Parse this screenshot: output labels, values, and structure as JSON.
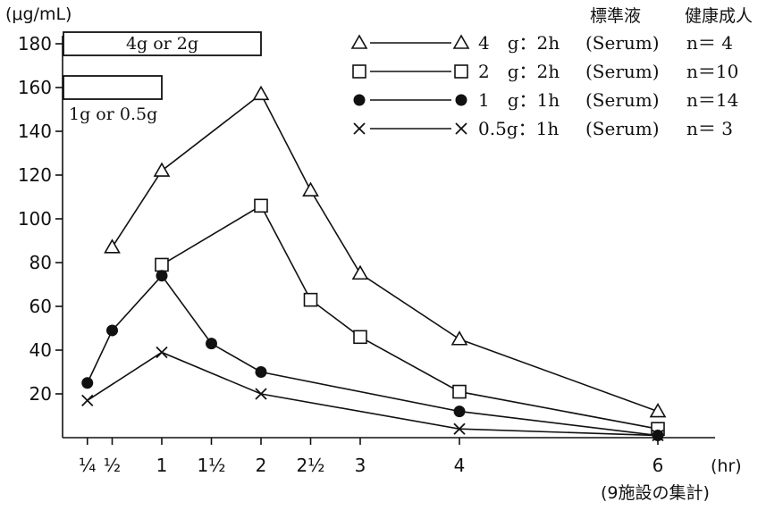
{
  "chart_data": {
    "type": "line",
    "y_unit": "(μg/mL)",
    "x_unit": "(hr)",
    "footnote": "(9施設の集計)",
    "header_col1": "標準液",
    "header_col2": "健康成人",
    "xlim": [
      0,
      6.5
    ],
    "ylim": [
      0,
      190
    ],
    "y_ticks": [
      {
        "v": 20,
        "label": "20"
      },
      {
        "v": 40,
        "label": "40"
      },
      {
        "v": 60,
        "label": "60"
      },
      {
        "v": 80,
        "label": "80"
      },
      {
        "v": 100,
        "label": "100"
      },
      {
        "v": 120,
        "label": "120"
      },
      {
        "v": 140,
        "label": "140"
      },
      {
        "v": 160,
        "label": "160"
      },
      {
        "v": 180,
        "label": "180"
      }
    ],
    "x_ticks": [
      {
        "v": 0.25,
        "label": "¼"
      },
      {
        "v": 0.5,
        "label": "½"
      },
      {
        "v": 1,
        "label": "1"
      },
      {
        "v": 1.5,
        "label": "1½"
      },
      {
        "v": 2,
        "label": "2"
      },
      {
        "v": 2.5,
        "label": "2½"
      },
      {
        "v": 3,
        "label": "3"
      },
      {
        "v": 4,
        "label": "4"
      },
      {
        "v": 6,
        "label": "6"
      }
    ],
    "dose_bars": [
      {
        "label": "4g or 2g",
        "x_start": 0,
        "x_end": 2,
        "y": 180,
        "label_position": "inside"
      },
      {
        "label": "1g or 0.5g",
        "x_start": 0,
        "x_end": 1,
        "y": 160,
        "label_position": "below"
      }
    ],
    "series": [
      {
        "marker": "triangle",
        "legend_dose": "4　g：2h",
        "legend_sample": "(Serum)",
        "legend_n": "n＝ 4",
        "x": [
          0.5,
          1,
          2,
          2.5,
          3,
          4,
          6
        ],
        "y": [
          87,
          122,
          157,
          113,
          75,
          45,
          12
        ]
      },
      {
        "marker": "square",
        "legend_dose": "2　g：2h",
        "legend_sample": "(Serum)",
        "legend_n": "n＝10",
        "x": [
          1,
          2,
          2.5,
          3,
          4,
          6
        ],
        "y": [
          79,
          106,
          63,
          46,
          21,
          4
        ]
      },
      {
        "marker": "circle",
        "legend_dose": "1　g：1h",
        "legend_sample": "(Serum)",
        "legend_n": "n＝14",
        "x": [
          0.25,
          0.5,
          1,
          1.5,
          2,
          4,
          6
        ],
        "y": [
          25,
          49,
          74,
          43,
          30,
          12,
          1
        ]
      },
      {
        "marker": "cross",
        "legend_dose": "0.5g：1h",
        "legend_sample": "(Serum)",
        "legend_n": "n＝ 3",
        "x": [
          0.25,
          1,
          2,
          4,
          6
        ],
        "y": [
          17,
          39,
          20,
          4,
          1
        ]
      }
    ]
  }
}
